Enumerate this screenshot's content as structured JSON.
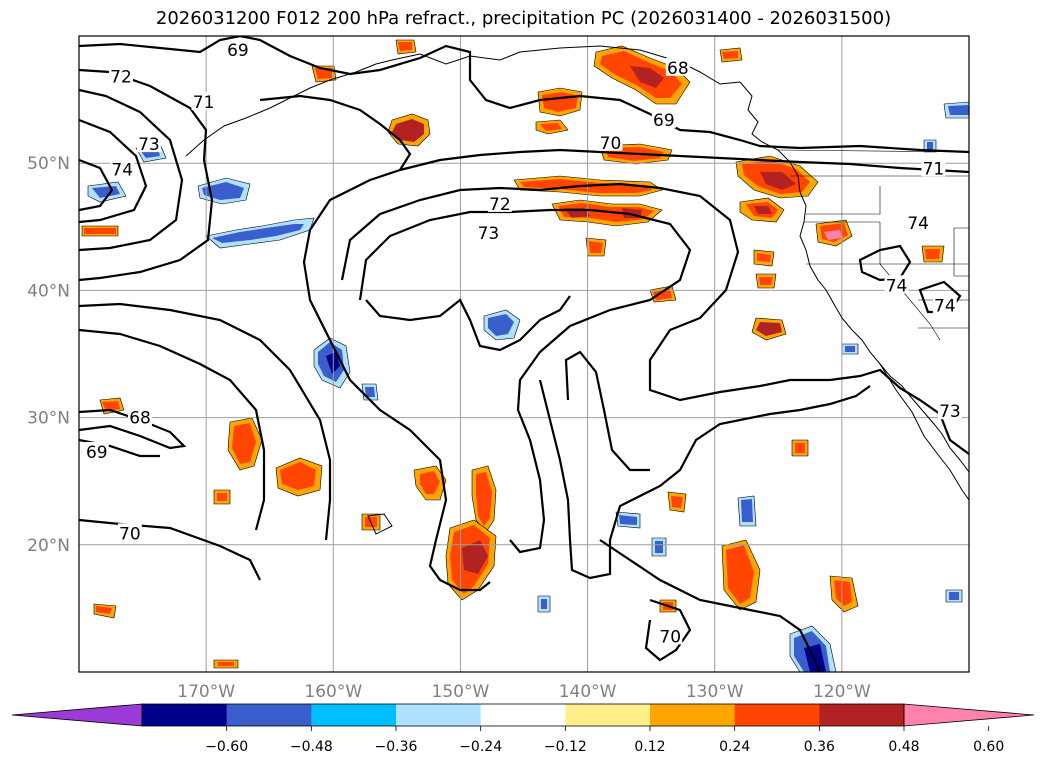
{
  "title": "2026031200 F012 200 hPa refract., precipitation PC (2026031400 - 2026031500)",
  "map": {
    "lon_range": [
      -180,
      -110
    ],
    "lat_range": [
      10,
      60
    ],
    "grid": true,
    "lon_ticks": [
      {
        "value": -170,
        "label": "170°W"
      },
      {
        "value": -160,
        "label": "160°W"
      },
      {
        "value": -150,
        "label": "150°W"
      },
      {
        "value": -140,
        "label": "140°W"
      },
      {
        "value": -130,
        "label": "130°W"
      },
      {
        "value": -120,
        "label": "120°W"
      }
    ],
    "lat_ticks": [
      {
        "value": 50,
        "label": "50°N"
      },
      {
        "value": 40,
        "label": "40°N"
      },
      {
        "value": 30,
        "label": "30°N"
      },
      {
        "value": 20,
        "label": "20°N"
      }
    ],
    "contour_labels": [
      {
        "text": "69",
        "lon": -167.5,
        "lat": 58.9
      },
      {
        "text": "72",
        "lon": -176.7,
        "lat": 56.8
      },
      {
        "text": "71",
        "lon": -170.2,
        "lat": 54.8
      },
      {
        "text": "73",
        "lon": -174.5,
        "lat": 51.5
      },
      {
        "text": "74",
        "lon": -176.6,
        "lat": 49.5
      },
      {
        "text": "69",
        "lon": -134.0,
        "lat": 53.4
      },
      {
        "text": "70",
        "lon": -138.2,
        "lat": 51.6
      },
      {
        "text": "72",
        "lon": -146.9,
        "lat": 46.8
      },
      {
        "text": "73",
        "lon": -147.8,
        "lat": 44.5
      },
      {
        "text": "71",
        "lon": -112.8,
        "lat": 49.6
      },
      {
        "text": "68",
        "lon": -175.2,
        "lat": 30.0
      },
      {
        "text": "69",
        "lon": -178.6,
        "lat": 27.3
      },
      {
        "text": "70",
        "lon": -176.0,
        "lat": 20.9
      },
      {
        "text": "74",
        "lon": -114.0,
        "lat": 45.3
      },
      {
        "text": "74",
        "lon": -115.7,
        "lat": 40.4
      },
      {
        "text": "74",
        "lon": -111.9,
        "lat": 38.8
      },
      {
        "text": "73",
        "lon": -111.5,
        "lat": 30.5
      },
      {
        "text": "70",
        "lon": -133.5,
        "lat": 12.8
      },
      {
        "text": "68",
        "lon": -132.9,
        "lat": 57.5
      }
    ],
    "precip_colors": {
      "neg_lt_060": "#9b3ad6",
      "neg_048_060": "#00008b",
      "neg_036_048": "#3a5fcd",
      "neg_024_036": "#00bfff",
      "neg_012_024": "#b0e2ff",
      "pos_012_024": "#fff08c",
      "pos_024_036": "#ffa500",
      "pos_036_048": "#ff4500",
      "pos_048_060": "#b22222",
      "pos_gt_060": "#ff82ab"
    }
  },
  "colorbar": {
    "levels": [
      -0.6,
      -0.48,
      -0.36,
      -0.24,
      -0.12,
      0.12,
      0.24,
      0.36,
      0.48,
      0.6
    ],
    "labels": [
      "−0.60",
      "−0.48",
      "−0.36",
      "−0.24",
      "−0.12",
      "0.12",
      "0.24",
      "0.36",
      "0.48",
      "0.60"
    ],
    "colors": [
      "#9b3ad6",
      "#00008b",
      "#3a5fcd",
      "#00bfff",
      "#b0e2ff",
      "#ffffff",
      "#fff08c",
      "#ffa500",
      "#ff4500",
      "#b22222",
      "#ff82ab"
    ],
    "extend": "both"
  }
}
